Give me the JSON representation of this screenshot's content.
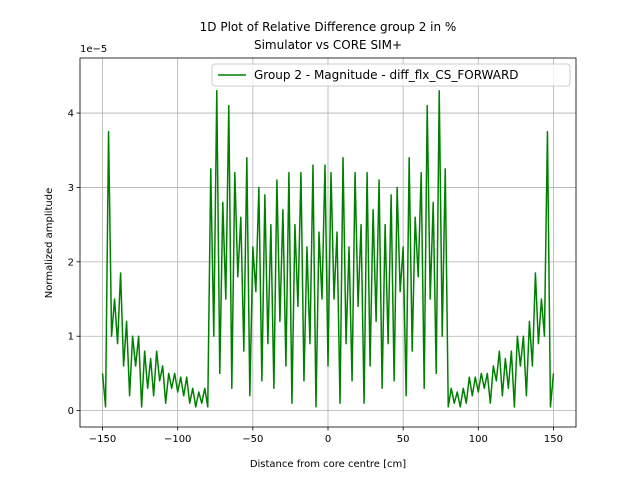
{
  "chart_data": {
    "type": "line",
    "title": [
      "1D Plot of Relative Difference group 2 in %",
      "Simulator vs CORE SIM+"
    ],
    "x_label": "Distance from core centre [cm]",
    "y_label": "Normalized amplitude",
    "y_offset_label": "1e−5",
    "x": [
      -150,
      -148,
      -146,
      -144,
      -142,
      -140,
      -138,
      -136,
      -134,
      -132,
      -130,
      -128,
      -126,
      -124,
      -122,
      -120,
      -118,
      -116,
      -114,
      -112,
      -110,
      -108,
      -106,
      -104,
      -102,
      -100,
      -98,
      -96,
      -94,
      -92,
      -90,
      -88,
      -86,
      -84,
      -82,
      -80,
      -78,
      -76,
      -74,
      -72,
      -70,
      -68,
      -66,
      -64,
      -62,
      -60,
      -58,
      -56,
      -54,
      -52,
      -50,
      -48,
      -46,
      -44,
      -42,
      -40,
      -38,
      -36,
      -34,
      -32,
      -30,
      -28,
      -26,
      -24,
      -22,
      -20,
      -18,
      -16,
      -14,
      -12,
      -10,
      -8,
      -6,
      -4,
      -2,
      0,
      2,
      4,
      6,
      8,
      10,
      12,
      14,
      16,
      18,
      20,
      22,
      24,
      26,
      28,
      30,
      32,
      34,
      36,
      38,
      40,
      42,
      44,
      46,
      48,
      50,
      52,
      54,
      56,
      58,
      60,
      62,
      64,
      66,
      68,
      70,
      72,
      74,
      76,
      78,
      80,
      82,
      84,
      86,
      88,
      90,
      92,
      94,
      96,
      98,
      100,
      102,
      104,
      106,
      108,
      110,
      112,
      114,
      116,
      118,
      120,
      122,
      124,
      126,
      128,
      130,
      132,
      134,
      136,
      138,
      140,
      142,
      144,
      146,
      148,
      150
    ],
    "series": [
      {
        "name": "Group 2 - Magnitude - diff_flx_CS_FORWARD",
        "color": "#008000",
        "values": [
          0.5,
          0.05,
          3.75,
          1.0,
          1.5,
          0.9,
          1.85,
          0.6,
          1.2,
          0.2,
          1.0,
          0.6,
          1.0,
          0.05,
          0.8,
          0.3,
          0.7,
          0.2,
          0.8,
          0.4,
          0.6,
          0.1,
          0.5,
          0.3,
          0.5,
          0.25,
          0.45,
          0.2,
          0.45,
          0.1,
          0.3,
          0.05,
          0.25,
          0.1,
          0.3,
          0.05,
          3.25,
          1.0,
          4.3,
          0.5,
          2.8,
          1.5,
          4.1,
          0.3,
          3.2,
          1.8,
          2.6,
          0.8,
          3.4,
          0.2,
          2.2,
          1.6,
          3.0,
          0.4,
          2.9,
          0.9,
          2.5,
          0.3,
          3.1,
          1.2,
          2.7,
          0.6,
          3.2,
          0.1,
          2.5,
          1.4,
          3.2,
          0.4,
          2.2,
          0.9,
          3.3,
          0.05,
          2.4,
          1.5,
          3.3,
          0.6,
          3.2,
          1.5,
          2.4,
          0.1,
          3.4,
          0.9,
          2.2,
          0.4,
          3.2,
          1.4,
          2.5,
          0.1,
          3.2,
          0.6,
          2.7,
          1.2,
          3.1,
          0.3,
          2.5,
          0.9,
          2.9,
          0.4,
          3.0,
          1.6,
          2.2,
          0.2,
          3.4,
          0.8,
          2.6,
          1.8,
          3.2,
          0.3,
          4.1,
          1.5,
          2.8,
          0.5,
          4.3,
          1.0,
          3.25,
          0.05,
          0.3,
          0.1,
          0.25,
          0.05,
          0.3,
          0.1,
          0.45,
          0.2,
          0.45,
          0.25,
          0.5,
          0.3,
          0.5,
          0.1,
          0.6,
          0.4,
          0.8,
          0.2,
          0.7,
          0.3,
          0.8,
          0.05,
          1.0,
          0.6,
          1.0,
          0.2,
          1.2,
          0.6,
          1.85,
          0.9,
          1.5,
          1.0,
          3.75,
          0.05,
          0.5
        ]
      }
    ],
    "xlim": [
      -165,
      165
    ],
    "ylim": [
      -0.22,
      4.74
    ],
    "xticks": [
      {
        "value": -150,
        "label": "−150"
      },
      {
        "value": -100,
        "label": "−100"
      },
      {
        "value": -50,
        "label": "−50"
      },
      0,
      50,
      100,
      150
    ],
    "yticks": [
      0,
      1,
      2,
      3,
      4
    ],
    "grid": true,
    "legend": "upper right"
  }
}
